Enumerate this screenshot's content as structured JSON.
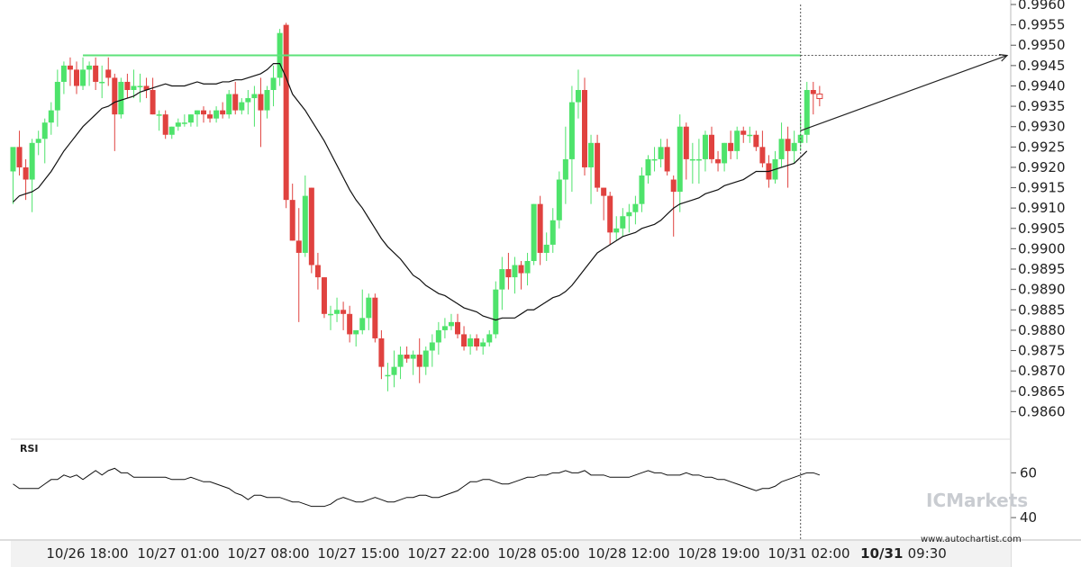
{
  "chart_data": {
    "type": "candlestick",
    "pattern": "resistance breakout projection",
    "colors": {
      "up": "#4ee36b",
      "down": "#e0423f",
      "resistance": "#5de17a",
      "sma": "#111111",
      "rsi": "#111111",
      "projection": "#222222"
    },
    "y_axis": {
      "range": [
        0.9855,
        0.996
      ],
      "ticks": [
        "0.9960",
        "0.9955",
        "0.9950",
        "0.9945",
        "0.9940",
        "0.9935",
        "0.9930",
        "0.9925",
        "0.9920",
        "0.9915",
        "0.9910",
        "0.9905",
        "0.9900",
        "0.9895",
        "0.9890",
        "0.9885",
        "0.9880",
        "0.9875",
        "0.9870",
        "0.9865",
        "0.9860"
      ]
    },
    "x_axis": {
      "labels": [
        "10/26 18:00",
        "10/27 01:00",
        "10/27 08:00",
        "10/27 15:00",
        "10/27 22:00",
        "10/28 05:00",
        "10/28 12:00",
        "10/28 19:00",
        "10/31 02:00",
        "10/31 09:30"
      ],
      "highlighted": "10/31 09:30"
    },
    "resistance_level": 0.99475,
    "projection": {
      "from": 0.9929,
      "to": 0.99475
    },
    "candles": [
      {
        "o": 0.9919,
        "h": 0.9924,
        "l": 0.9911,
        "c": 0.9925
      },
      {
        "o": 0.9925,
        "h": 0.9929,
        "l": 0.9918,
        "c": 0.992
      },
      {
        "o": 0.992,
        "h": 0.9922,
        "l": 0.9912,
        "c": 0.9917
      },
      {
        "o": 0.9917,
        "h": 0.9927,
        "l": 0.9909,
        "c": 0.9926
      },
      {
        "o": 0.9926,
        "h": 0.9929,
        "l": 0.9923,
        "c": 0.9927
      },
      {
        "o": 0.9927,
        "h": 0.9932,
        "l": 0.9921,
        "c": 0.9931
      },
      {
        "o": 0.9931,
        "h": 0.9936,
        "l": 0.9928,
        "c": 0.9934
      },
      {
        "o": 0.9934,
        "h": 0.9944,
        "l": 0.993,
        "c": 0.9941
      },
      {
        "o": 0.9941,
        "h": 0.9946,
        "l": 0.9938,
        "c": 0.9945
      },
      {
        "o": 0.9945,
        "h": 0.9947,
        "l": 0.994,
        "c": 0.9944
      },
      {
        "o": 0.9944,
        "h": 0.9946,
        "l": 0.9938,
        "c": 0.994
      },
      {
        "o": 0.994,
        "h": 0.9947,
        "l": 0.9939,
        "c": 0.9944
      },
      {
        "o": 0.9944,
        "h": 0.9946,
        "l": 0.994,
        "c": 0.9945
      },
      {
        "o": 0.9945,
        "h": 0.9947,
        "l": 0.9939,
        "c": 0.9941
      },
      {
        "o": 0.9941,
        "h": 0.9945,
        "l": 0.9937,
        "c": 0.9941
      },
      {
        "o": 0.9944,
        "h": 0.9947,
        "l": 0.994,
        "c": 0.9942
      },
      {
        "o": 0.9942,
        "h": 0.9943,
        "l": 0.9924,
        "c": 0.9933
      },
      {
        "o": 0.9933,
        "h": 0.9942,
        "l": 0.9932,
        "c": 0.9941
      },
      {
        "o": 0.9941,
        "h": 0.9943,
        "l": 0.9937,
        "c": 0.9939
      },
      {
        "o": 0.9939,
        "h": 0.9944,
        "l": 0.9937,
        "c": 0.994
      },
      {
        "o": 0.994,
        "h": 0.9943,
        "l": 0.9936,
        "c": 0.994
      },
      {
        "o": 0.994,
        "h": 0.9942,
        "l": 0.9937,
        "c": 0.9939
      },
      {
        "o": 0.9939,
        "h": 0.9942,
        "l": 0.9933,
        "c": 0.9933
      },
      {
        "o": 0.9933,
        "h": 0.9934,
        "l": 0.9929,
        "c": 0.9933
      },
      {
        "o": 0.9933,
        "h": 0.9934,
        "l": 0.9927,
        "c": 0.9928
      },
      {
        "o": 0.9928,
        "h": 0.993,
        "l": 0.9927,
        "c": 0.993
      },
      {
        "o": 0.993,
        "h": 0.9932,
        "l": 0.9929,
        "c": 0.9931
      },
      {
        "o": 0.9931,
        "h": 0.9933,
        "l": 0.993,
        "c": 0.9931
      },
      {
        "o": 0.9931,
        "h": 0.9933,
        "l": 0.993,
        "c": 0.9933
      },
      {
        "o": 0.9933,
        "h": 0.9934,
        "l": 0.993,
        "c": 0.9934
      },
      {
        "o": 0.9934,
        "h": 0.9935,
        "l": 0.9931,
        "c": 0.9933
      },
      {
        "o": 0.9933,
        "h": 0.9934,
        "l": 0.9931,
        "c": 0.9932
      },
      {
        "o": 0.9932,
        "h": 0.9935,
        "l": 0.9931,
        "c": 0.9934
      },
      {
        "o": 0.9934,
        "h": 0.9936,
        "l": 0.9932,
        "c": 0.9933
      },
      {
        "o": 0.9933,
        "h": 0.9939,
        "l": 0.9932,
        "c": 0.9938
      },
      {
        "o": 0.9938,
        "h": 0.9941,
        "l": 0.9933,
        "c": 0.9934
      },
      {
        "o": 0.9934,
        "h": 0.9937,
        "l": 0.9933,
        "c": 0.9936
      },
      {
        "o": 0.9936,
        "h": 0.9939,
        "l": 0.9933,
        "c": 0.9937
      },
      {
        "o": 0.9937,
        "h": 0.994,
        "l": 0.993,
        "c": 0.9938
      },
      {
        "o": 0.9938,
        "h": 0.9942,
        "l": 0.9925,
        "c": 0.9934
      },
      {
        "o": 0.9934,
        "h": 0.994,
        "l": 0.9932,
        "c": 0.9939
      },
      {
        "o": 0.9939,
        "h": 0.9945,
        "l": 0.9935,
        "c": 0.9942
      },
      {
        "o": 0.9942,
        "h": 0.9954,
        "l": 0.994,
        "c": 0.9953
      },
      {
        "o": 0.9955,
        "h": 0.99555,
        "l": 0.991,
        "c": 0.9912
      },
      {
        "o": 0.9912,
        "h": 0.9916,
        "l": 0.9902,
        "c": 0.9902
      },
      {
        "o": 0.9902,
        "h": 0.991,
        "l": 0.9882,
        "c": 0.9899
      },
      {
        "o": 0.9899,
        "h": 0.9918,
        "l": 0.9898,
        "c": 0.9913
      },
      {
        "o": 0.9915,
        "h": 0.9915,
        "l": 0.9894,
        "c": 0.9896
      },
      {
        "o": 0.9896,
        "h": 0.9899,
        "l": 0.989,
        "c": 0.9893
      },
      {
        "o": 0.9893,
        "h": 0.9893,
        "l": 0.9883,
        "c": 0.9884
      },
      {
        "o": 0.9884,
        "h": 0.9886,
        "l": 0.988,
        "c": 0.9884
      },
      {
        "o": 0.9884,
        "h": 0.9888,
        "l": 0.9882,
        "c": 0.9885
      },
      {
        "o": 0.9885,
        "h": 0.9887,
        "l": 0.988,
        "c": 0.9884
      },
      {
        "o": 0.9884,
        "h": 0.9886,
        "l": 0.9877,
        "c": 0.9879
      },
      {
        "o": 0.9879,
        "h": 0.988,
        "l": 0.9876,
        "c": 0.988
      },
      {
        "o": 0.988,
        "h": 0.989,
        "l": 0.9879,
        "c": 0.9883
      },
      {
        "o": 0.9883,
        "h": 0.9889,
        "l": 0.988,
        "c": 0.9888
      },
      {
        "o": 0.9888,
        "h": 0.9889,
        "l": 0.9877,
        "c": 0.9878
      },
      {
        "o": 0.9878,
        "h": 0.988,
        "l": 0.9868,
        "c": 0.9871
      },
      {
        "o": 0.9869,
        "h": 0.9872,
        "l": 0.9865,
        "c": 0.9869
      },
      {
        "o": 0.9869,
        "h": 0.9875,
        "l": 0.9866,
        "c": 0.9871
      },
      {
        "o": 0.9871,
        "h": 0.9876,
        "l": 0.9868,
        "c": 0.9874
      },
      {
        "o": 0.9874,
        "h": 0.9876,
        "l": 0.9872,
        "c": 0.9873
      },
      {
        "o": 0.9873,
        "h": 0.9875,
        "l": 0.9869,
        "c": 0.9874
      },
      {
        "o": 0.9874,
        "h": 0.9878,
        "l": 0.9867,
        "c": 0.9871
      },
      {
        "o": 0.9871,
        "h": 0.9876,
        "l": 0.9869,
        "c": 0.9875
      },
      {
        "o": 0.9875,
        "h": 0.9879,
        "l": 0.9871,
        "c": 0.9877
      },
      {
        "o": 0.9877,
        "h": 0.9882,
        "l": 0.9874,
        "c": 0.988
      },
      {
        "o": 0.988,
        "h": 0.9883,
        "l": 0.9878,
        "c": 0.9881
      },
      {
        "o": 0.9881,
        "h": 0.9884,
        "l": 0.988,
        "c": 0.9882
      },
      {
        "o": 0.9882,
        "h": 0.9884,
        "l": 0.9878,
        "c": 0.9879
      },
      {
        "o": 0.9879,
        "h": 0.9881,
        "l": 0.9875,
        "c": 0.9876
      },
      {
        "o": 0.9876,
        "h": 0.9879,
        "l": 0.9874,
        "c": 0.9878
      },
      {
        "o": 0.9878,
        "h": 0.9879,
        "l": 0.9875,
        "c": 0.9876
      },
      {
        "o": 0.9876,
        "h": 0.9878,
        "l": 0.9874,
        "c": 0.9877
      },
      {
        "o": 0.9877,
        "h": 0.988,
        "l": 0.9876,
        "c": 0.9879
      },
      {
        "o": 0.9879,
        "h": 0.9892,
        "l": 0.9878,
        "c": 0.989
      },
      {
        "o": 0.989,
        "h": 0.9898,
        "l": 0.9885,
        "c": 0.9895
      },
      {
        "o": 0.9895,
        "h": 0.9899,
        "l": 0.989,
        "c": 0.9893
      },
      {
        "o": 0.9893,
        "h": 0.9898,
        "l": 0.9889,
        "c": 0.9896
      },
      {
        "o": 0.9896,
        "h": 0.9897,
        "l": 0.989,
        "c": 0.9894
      },
      {
        "o": 0.9894,
        "h": 0.9899,
        "l": 0.9891,
        "c": 0.9897
      },
      {
        "o": 0.9897,
        "h": 0.9911,
        "l": 0.9896,
        "c": 0.9911
      },
      {
        "o": 0.9911,
        "h": 0.9913,
        "l": 0.9896,
        "c": 0.9899
      },
      {
        "o": 0.9899,
        "h": 0.9904,
        "l": 0.9897,
        "c": 0.9901
      },
      {
        "o": 0.9901,
        "h": 0.991,
        "l": 0.9899,
        "c": 0.9907
      },
      {
        "o": 0.9907,
        "h": 0.9919,
        "l": 0.9905,
        "c": 0.9917
      },
      {
        "o": 0.9917,
        "h": 0.993,
        "l": 0.9911,
        "c": 0.9922
      },
      {
        "o": 0.9922,
        "h": 0.994,
        "l": 0.9914,
        "c": 0.9936
      },
      {
        "o": 0.9936,
        "h": 0.9944,
        "l": 0.9932,
        "c": 0.9939
      },
      {
        "o": 0.9939,
        "h": 0.9942,
        "l": 0.9918,
        "c": 0.992
      },
      {
        "o": 0.992,
        "h": 0.9928,
        "l": 0.9911,
        "c": 0.9926
      },
      {
        "o": 0.9926,
        "h": 0.9928,
        "l": 0.9914,
        "c": 0.9915
      },
      {
        "o": 0.9915,
        "h": 0.9915,
        "l": 0.9907,
        "c": 0.9913
      },
      {
        "o": 0.9913,
        "h": 0.9914,
        "l": 0.9901,
        "c": 0.9904
      },
      {
        "o": 0.9904,
        "h": 0.9908,
        "l": 0.9902,
        "c": 0.9905
      },
      {
        "o": 0.9905,
        "h": 0.991,
        "l": 0.9903,
        "c": 0.9908
      },
      {
        "o": 0.9908,
        "h": 0.9911,
        "l": 0.9904,
        "c": 0.9909
      },
      {
        "o": 0.9909,
        "h": 0.9913,
        "l": 0.9906,
        "c": 0.9911
      },
      {
        "o": 0.9911,
        "h": 0.992,
        "l": 0.9909,
        "c": 0.9918
      },
      {
        "o": 0.9918,
        "h": 0.9923,
        "l": 0.9916,
        "c": 0.9922
      },
      {
        "o": 0.9922,
        "h": 0.9925,
        "l": 0.9919,
        "c": 0.9922
      },
      {
        "o": 0.9922,
        "h": 0.9927,
        "l": 0.992,
        "c": 0.9925
      },
      {
        "o": 0.9925,
        "h": 0.9927,
        "l": 0.9918,
        "c": 0.9919
      },
      {
        "o": 0.9917,
        "h": 0.9918,
        "l": 0.9903,
        "c": 0.9914
      },
      {
        "o": 0.9914,
        "h": 0.9933,
        "l": 0.9909,
        "c": 0.993
      },
      {
        "o": 0.993,
        "h": 0.9931,
        "l": 0.9917,
        "c": 0.9922
      },
      {
        "o": 0.9922,
        "h": 0.9926,
        "l": 0.9916,
        "c": 0.9922
      },
      {
        "o": 0.9922,
        "h": 0.9927,
        "l": 0.9916,
        "c": 0.9922
      },
      {
        "o": 0.9922,
        "h": 0.9929,
        "l": 0.9919,
        "c": 0.9928
      },
      {
        "o": 0.9928,
        "h": 0.993,
        "l": 0.9921,
        "c": 0.9922
      },
      {
        "o": 0.9922,
        "h": 0.9924,
        "l": 0.9919,
        "c": 0.9921
      },
      {
        "o": 0.9921,
        "h": 0.9926,
        "l": 0.9919,
        "c": 0.9926
      },
      {
        "o": 0.9926,
        "h": 0.9929,
        "l": 0.9922,
        "c": 0.9924
      },
      {
        "o": 0.9924,
        "h": 0.993,
        "l": 0.9922,
        "c": 0.9929
      },
      {
        "o": 0.9929,
        "h": 0.993,
        "l": 0.9926,
        "c": 0.9928
      },
      {
        "o": 0.9928,
        "h": 0.993,
        "l": 0.9926,
        "c": 0.9928
      },
      {
        "o": 0.9928,
        "h": 0.9929,
        "l": 0.9924,
        "c": 0.9925
      },
      {
        "o": 0.9925,
        "h": 0.9929,
        "l": 0.992,
        "c": 0.9921
      },
      {
        "o": 0.9921,
        "h": 0.9923,
        "l": 0.9915,
        "c": 0.9917
      },
      {
        "o": 0.9917,
        "h": 0.9924,
        "l": 0.9916,
        "c": 0.9922
      },
      {
        "o": 0.9922,
        "h": 0.9931,
        "l": 0.992,
        "c": 0.9927
      },
      {
        "o": 0.9927,
        "h": 0.993,
        "l": 0.9915,
        "c": 0.9924
      },
      {
        "o": 0.9924,
        "h": 0.9929,
        "l": 0.9921,
        "c": 0.9926
      },
      {
        "o": 0.9926,
        "h": 0.9933,
        "l": 0.9924,
        "c": 0.9928
      },
      {
        "o": 0.9928,
        "h": 0.9941,
        "l": 0.9926,
        "c": 0.9939
      },
      {
        "o": 0.9939,
        "h": 0.9941,
        "l": 0.9933,
        "c": 0.9938
      },
      {
        "o": 0.9938,
        "h": 0.994,
        "l": 0.9935,
        "c": 0.9937
      }
    ],
    "sma": [
      0.99115,
      0.9913,
      0.99135,
      0.9914,
      0.9915,
      0.9917,
      0.9919,
      0.99215,
      0.9924,
      0.9926,
      0.9928,
      0.993,
      0.99315,
      0.9933,
      0.99345,
      0.9935,
      0.9936,
      0.99365,
      0.9937,
      0.99375,
      0.99385,
      0.9939,
      0.99395,
      0.994,
      0.99405,
      0.994,
      0.994,
      0.994,
      0.99405,
      0.9941,
      0.99405,
      0.99405,
      0.99405,
      0.9941,
      0.9941,
      0.99415,
      0.99415,
      0.9942,
      0.99425,
      0.9943,
      0.9944,
      0.99455,
      0.99455,
      0.9942,
      0.9938,
      0.9936,
      0.9934,
      0.99315,
      0.9929,
      0.99265,
      0.99235,
      0.99205,
      0.99175,
      0.99145,
      0.9912,
      0.991,
      0.99075,
      0.9905,
      0.99025,
      0.99005,
      0.9899,
      0.98975,
      0.98955,
      0.98935,
      0.98925,
      0.9891,
      0.989,
      0.9889,
      0.98885,
      0.98875,
      0.98865,
      0.98855,
      0.9885,
      0.98845,
      0.98835,
      0.9883,
      0.98825,
      0.9883,
      0.9883,
      0.9883,
      0.9884,
      0.9885,
      0.9885,
      0.9886,
      0.9887,
      0.9888,
      0.98885,
      0.98895,
      0.9891,
      0.9893,
      0.9895,
      0.9897,
      0.9899,
      0.99,
      0.9901,
      0.9902,
      0.9903,
      0.99035,
      0.9904,
      0.9905,
      0.99055,
      0.9906,
      0.9907,
      0.99085,
      0.991,
      0.9911,
      0.99115,
      0.9912,
      0.99125,
      0.99135,
      0.9914,
      0.99145,
      0.99155,
      0.9916,
      0.99165,
      0.9917,
      0.9918,
      0.9919,
      0.9919,
      0.9919,
      0.99195,
      0.992,
      0.99205,
      0.9921,
      0.99225,
      0.9924
    ],
    "rsi": {
      "label": "RSI",
      "ticks": [
        "60",
        "40"
      ],
      "range": [
        30,
        75
      ],
      "values": [
        55,
        53,
        53,
        53,
        53,
        55,
        57,
        57,
        59,
        58,
        59,
        57,
        59,
        61,
        59,
        61,
        62,
        60,
        60,
        58,
        58,
        58,
        58,
        58,
        58,
        57,
        57,
        57,
        58,
        57,
        56,
        56,
        55,
        54,
        53,
        51,
        50,
        48,
        50,
        50,
        49,
        49,
        49,
        48,
        47,
        47,
        46,
        45,
        45,
        45,
        46,
        48,
        49,
        48,
        47,
        47,
        48,
        49,
        48,
        47,
        47,
        48,
        49,
        49,
        50,
        50,
        49,
        49,
        50,
        51,
        52,
        54,
        56,
        56,
        57,
        57,
        56,
        55,
        55,
        56,
        57,
        58,
        58,
        59,
        59,
        60,
        60,
        61,
        60,
        60,
        61,
        59,
        59,
        59,
        58,
        58,
        58,
        58,
        59,
        60,
        61,
        60,
        60,
        59,
        59,
        59,
        60,
        59,
        59,
        58,
        58,
        57,
        57,
        56,
        55,
        54,
        53,
        52,
        53,
        53,
        54,
        56,
        57,
        58,
        59,
        60,
        60,
        59
      ]
    }
  },
  "branding": {
    "watermark": "ICMarkets",
    "url": "www.autochartist.com"
  }
}
